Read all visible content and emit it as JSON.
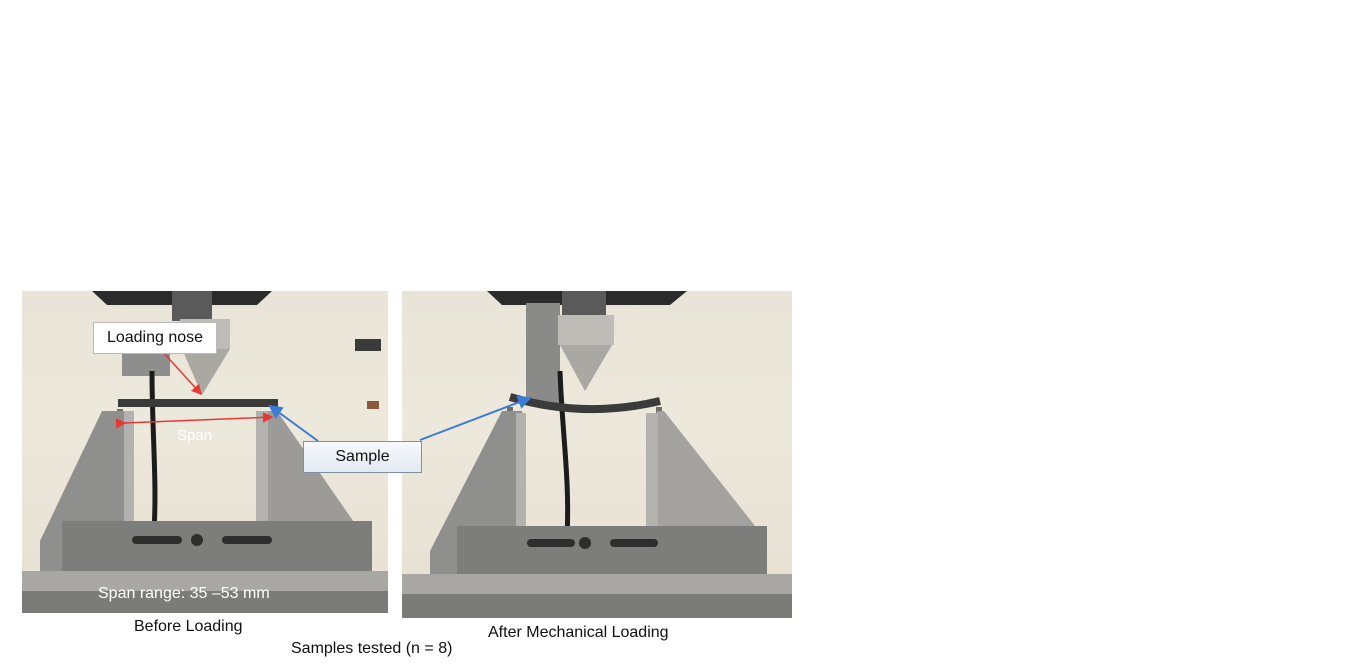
{
  "figure": {
    "left_panel": {
      "callout_loading_nose": "Loading nose",
      "span_label": "Span",
      "span_range": "Span range: 35 –53 mm",
      "caption": "Before Loading"
    },
    "right_panel": {
      "caption": "After Mechanical Loading"
    },
    "callout_sample": "Sample",
    "footer_caption": "Samples tested (n = 8)"
  },
  "colors": {
    "span_arrow": "#e53935",
    "sample_arrow": "#3a7bd5",
    "fixture_metal": "#9a9a98",
    "machine_dark": "#2b2b2b"
  }
}
